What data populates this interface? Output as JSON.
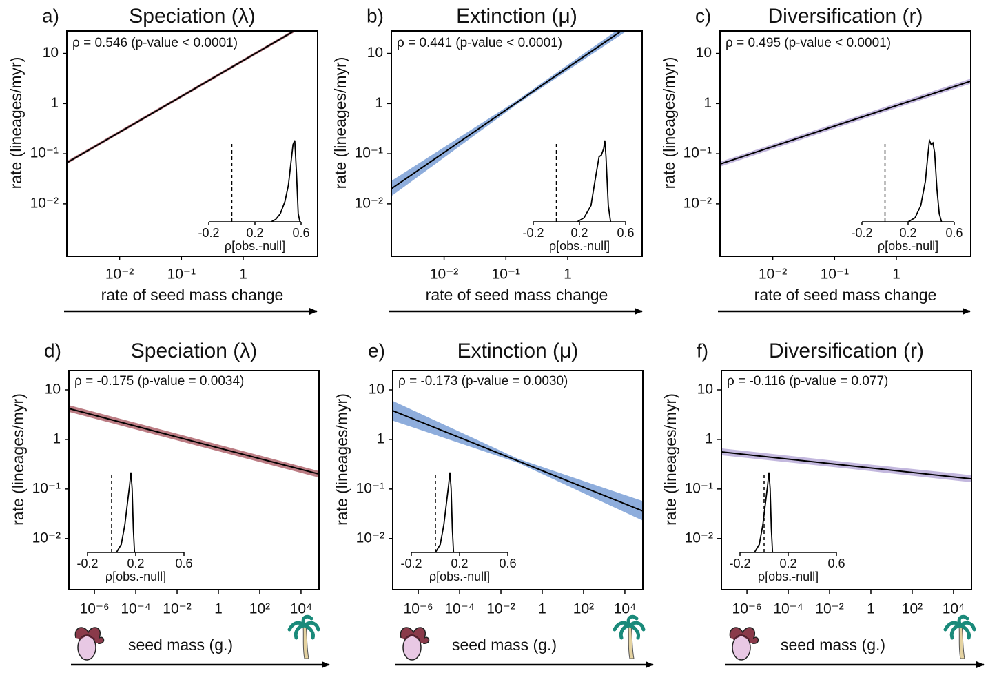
{
  "chart_data": [
    {
      "type": "line",
      "panel": "a)",
      "title": "Speciation (λ)",
      "annotation": "ρ = 0.546 (p-value < 0.0001)",
      "xlabel": "rate of seed mass change",
      "ylabel": "rate (lineages/myr)",
      "log_x": true,
      "log_y": true,
      "xlim": [
        0.0014,
        16
      ],
      "ylim": [
        0.0009,
        28
      ],
      "xticks": [
        {
          "value": 0.01,
          "label": "10⁻²"
        },
        {
          "value": 0.1,
          "label": "10⁻¹"
        },
        1
      ],
      "yticks": [
        {
          "value": 0.01,
          "label": "10⁻²"
        },
        {
          "value": 0.1,
          "label": "10⁻¹"
        },
        1,
        10
      ],
      "series": [
        {
          "color": "#000000",
          "band_color": "#b0666e",
          "x": [
            0.0014,
            0.15,
            16
          ],
          "values": [
            0.066,
            1.86,
            52.5
          ],
          "lower": [
            0.062,
            1.74,
            49
          ],
          "upper": [
            0.071,
            1.99,
            56
          ]
        }
      ],
      "inset": {
        "type": "line",
        "xlabel": "ρ[obs.-null]",
        "xlim": [
          -0.2,
          0.6
        ],
        "ylim": [
          0,
          1.05
        ],
        "xticks": [
          -0.2,
          0.2,
          0.6
        ],
        "ref_line": 0,
        "x": [
          0.34,
          0.38,
          0.42,
          0.46,
          0.49,
          0.51,
          0.53,
          0.545,
          0.56,
          0.575,
          0.59
        ],
        "values": [
          0,
          0.03,
          0.1,
          0.25,
          0.45,
          0.7,
          0.95,
          1.0,
          0.6,
          0.1,
          0
        ]
      }
    },
    {
      "type": "line",
      "panel": "b)",
      "title": "Extinction (μ)",
      "annotation": "ρ = 0.441 (p-value < 0.0001)",
      "xlabel": "rate of seed mass change",
      "ylabel": "rate (lineages/myr)",
      "log_x": true,
      "log_y": true,
      "xlim": [
        0.0014,
        16
      ],
      "ylim": [
        0.0009,
        28
      ],
      "xticks": [
        {
          "value": 0.01,
          "label": "10⁻²"
        },
        {
          "value": 0.1,
          "label": "10⁻¹"
        },
        1
      ],
      "yticks": [
        {
          "value": 0.01,
          "label": "10⁻²"
        },
        {
          "value": 0.1,
          "label": "10⁻¹"
        },
        1,
        10
      ],
      "series": [
        {
          "color": "#000000",
          "band_color": "#7a9fd6",
          "x": [
            0.0014,
            0.15,
            16
          ],
          "values": [
            0.02,
            1.05,
            54
          ],
          "lower": [
            0.0142,
            0.96,
            45
          ],
          "upper": [
            0.0286,
            1.15,
            65
          ]
        }
      ],
      "inset": {
        "type": "line",
        "xlabel": "ρ[obs.-null]",
        "xlim": [
          -0.2,
          0.6
        ],
        "ylim": [
          0,
          1.05
        ],
        "xticks": [
          -0.2,
          0.2,
          0.6
        ],
        "ref_line": 0,
        "x": [
          0.18,
          0.24,
          0.3,
          0.34,
          0.37,
          0.39,
          0.41,
          0.42,
          0.43,
          0.45,
          0.47
        ],
        "values": [
          0,
          0.05,
          0.2,
          0.55,
          0.8,
          0.82,
          0.9,
          1.0,
          0.8,
          0.2,
          0
        ]
      }
    },
    {
      "type": "line",
      "panel": "c)",
      "title": "Diversification (r)",
      "annotation": "ρ = 0.495 (p-value < 0.0001)",
      "xlabel": "rate of seed mass change",
      "ylabel": "rate (lineages/myr)",
      "log_x": true,
      "log_y": true,
      "xlim": [
        0.0014,
        16
      ],
      "ylim": [
        0.0009,
        28
      ],
      "xticks": [
        {
          "value": 0.01,
          "label": "10⁻²"
        },
        {
          "value": 0.1,
          "label": "10⁻¹"
        },
        1
      ],
      "yticks": [
        {
          "value": 0.01,
          "label": "10⁻²"
        },
        {
          "value": 0.1,
          "label": "10⁻¹"
        },
        1,
        10
      ],
      "series": [
        {
          "color": "#000000",
          "band_color": "#b9acd8",
          "x": [
            0.0014,
            0.15,
            16
          ],
          "values": [
            0.062,
            0.42,
            2.8
          ],
          "lower": [
            0.055,
            0.375,
            2.5
          ],
          "upper": [
            0.069,
            0.47,
            3.14
          ]
        }
      ],
      "inset": {
        "type": "line",
        "xlabel": "ρ[obs.-null]",
        "xlim": [
          -0.2,
          0.6
        ],
        "ylim": [
          0,
          1.05
        ],
        "xticks": [
          -0.2,
          0.2,
          0.6
        ],
        "ref_line": 0,
        "x": [
          0.2,
          0.26,
          0.31,
          0.35,
          0.37,
          0.385,
          0.4,
          0.415,
          0.43,
          0.45,
          0.47,
          0.49
        ],
        "values": [
          0,
          0.05,
          0.2,
          0.5,
          0.8,
          1.0,
          0.95,
          0.97,
          0.85,
          0.4,
          0.1,
          0
        ]
      }
    },
    {
      "type": "line",
      "panel": "d)",
      "title": "Speciation (λ)",
      "annotation": "ρ = -0.175 (p-value = 0.0034)",
      "xlabel": "seed mass (g.)",
      "ylabel": "rate (lineages/myr)",
      "log_x": true,
      "log_y": true,
      "xlim": [
        5.8e-08,
        74000
      ],
      "ylim": [
        0.00093,
        24.5
      ],
      "xticks": [
        {
          "value": 1e-06,
          "label": "10⁻⁶"
        },
        {
          "value": 0.0001,
          "label": "10⁻⁴"
        },
        {
          "value": 0.01,
          "label": "10⁻²"
        },
        1,
        {
          "value": 100,
          "label": "10²"
        },
        {
          "value": 10000,
          "label": "10⁴"
        }
      ],
      "yticks": [
        {
          "value": 0.01,
          "label": "10⁻²"
        },
        {
          "value": 0.1,
          "label": "10⁻¹"
        },
        1,
        10
      ],
      "series": [
        {
          "color": "#000000",
          "band_color": "#b0666e",
          "x": [
            5.8e-08,
            0.065,
            74000
          ],
          "values": [
            4.2,
            0.91,
            0.2
          ],
          "lower": [
            3.6,
            0.78,
            0.17
          ],
          "upper": [
            4.9,
            1.06,
            0.23
          ]
        }
      ],
      "inset": {
        "type": "line",
        "xlabel": "ρ[obs.-null]",
        "xlim": [
          -0.2,
          0.6
        ],
        "ylim": [
          0,
          1.05
        ],
        "xticks": [
          -0.2,
          0.2,
          0.6
        ],
        "ref_line": 0,
        "x": [
          0.04,
          0.08,
          0.11,
          0.13,
          0.15,
          0.16,
          0.17,
          0.18,
          0.19
        ],
        "values": [
          0,
          0.1,
          0.35,
          0.6,
          0.85,
          1.0,
          0.8,
          0.3,
          0
        ]
      }
    },
    {
      "type": "line",
      "panel": "e)",
      "title": "Extinction (μ)",
      "annotation": "ρ = -0.173 (p-value = 0.0030)",
      "xlabel": "seed mass (g.)",
      "ylabel": "rate (lineages/myr)",
      "log_x": true,
      "log_y": true,
      "xlim": [
        5.8e-08,
        74000
      ],
      "ylim": [
        0.00093,
        24.5
      ],
      "xticks": [
        {
          "value": 1e-06,
          "label": "10⁻⁶"
        },
        {
          "value": 0.0001,
          "label": "10⁻⁴"
        },
        {
          "value": 0.01,
          "label": "10⁻²"
        },
        1,
        {
          "value": 100,
          "label": "10²"
        },
        {
          "value": 10000,
          "label": "10⁴"
        }
      ],
      "yticks": [
        {
          "value": 0.01,
          "label": "10⁻²"
        },
        {
          "value": 0.1,
          "label": "10⁻¹"
        },
        1,
        10
      ],
      "series": [
        {
          "color": "#000000",
          "band_color": "#7a9fd6",
          "x": [
            5.8e-08,
            0.065,
            74000
          ],
          "values": [
            3.8,
            0.37,
            0.036
          ],
          "lower": [
            2.4,
            0.34,
            0.023
          ],
          "upper": [
            6.0,
            0.41,
            0.057
          ]
        }
      ],
      "inset": {
        "type": "line",
        "xlabel": "ρ[obs.-null]",
        "xlim": [
          -0.2,
          0.6
        ],
        "ylim": [
          0,
          1.05
        ],
        "xticks": [
          -0.2,
          0.2,
          0.6
        ],
        "ref_line": 0,
        "x": [
          0.0,
          0.04,
          0.07,
          0.09,
          0.11,
          0.12,
          0.13,
          0.14,
          0.15
        ],
        "values": [
          0,
          0.1,
          0.35,
          0.6,
          0.85,
          1.0,
          0.8,
          0.3,
          0
        ]
      }
    },
    {
      "type": "line",
      "panel": "f)",
      "title": "Diversification (r)",
      "annotation": "ρ = -0.116 (p-value = 0.077)",
      "xlabel": "seed mass (g.)",
      "ylabel": "rate (lineages/myr)",
      "log_x": true,
      "log_y": true,
      "xlim": [
        5.8e-08,
        74000
      ],
      "ylim": [
        0.00093,
        24.5
      ],
      "xticks": [
        {
          "value": 1e-06,
          "label": "10⁻⁶"
        },
        {
          "value": 0.0001,
          "label": "10⁻⁴"
        },
        {
          "value": 0.01,
          "label": "10⁻²"
        },
        1,
        {
          "value": 100,
          "label": "10²"
        },
        {
          "value": 10000,
          "label": "10⁴"
        }
      ],
      "yticks": [
        {
          "value": 0.01,
          "label": "10⁻²"
        },
        {
          "value": 0.1,
          "label": "10⁻¹"
        },
        1,
        10
      ],
      "series": [
        {
          "color": "#000000",
          "band_color": "#b9acd8",
          "x": [
            5.8e-08,
            0.065,
            74000
          ],
          "values": [
            0.56,
            0.3,
            0.16
          ],
          "lower": [
            0.48,
            0.26,
            0.137
          ],
          "upper": [
            0.66,
            0.35,
            0.19
          ]
        }
      ],
      "inset": {
        "type": "line",
        "xlabel": "ρ[obs.-null]",
        "xlim": [
          -0.2,
          0.6
        ],
        "ylim": [
          0,
          1.05
        ],
        "xticks": [
          -0.2,
          0.2,
          0.6
        ],
        "ref_line": 0,
        "x": [
          -0.08,
          -0.04,
          -0.01,
          0.01,
          0.03,
          0.04,
          0.05,
          0.06,
          0.07
        ],
        "values": [
          0,
          0.1,
          0.35,
          0.6,
          0.85,
          1.0,
          0.8,
          0.3,
          0
        ]
      }
    }
  ]
}
